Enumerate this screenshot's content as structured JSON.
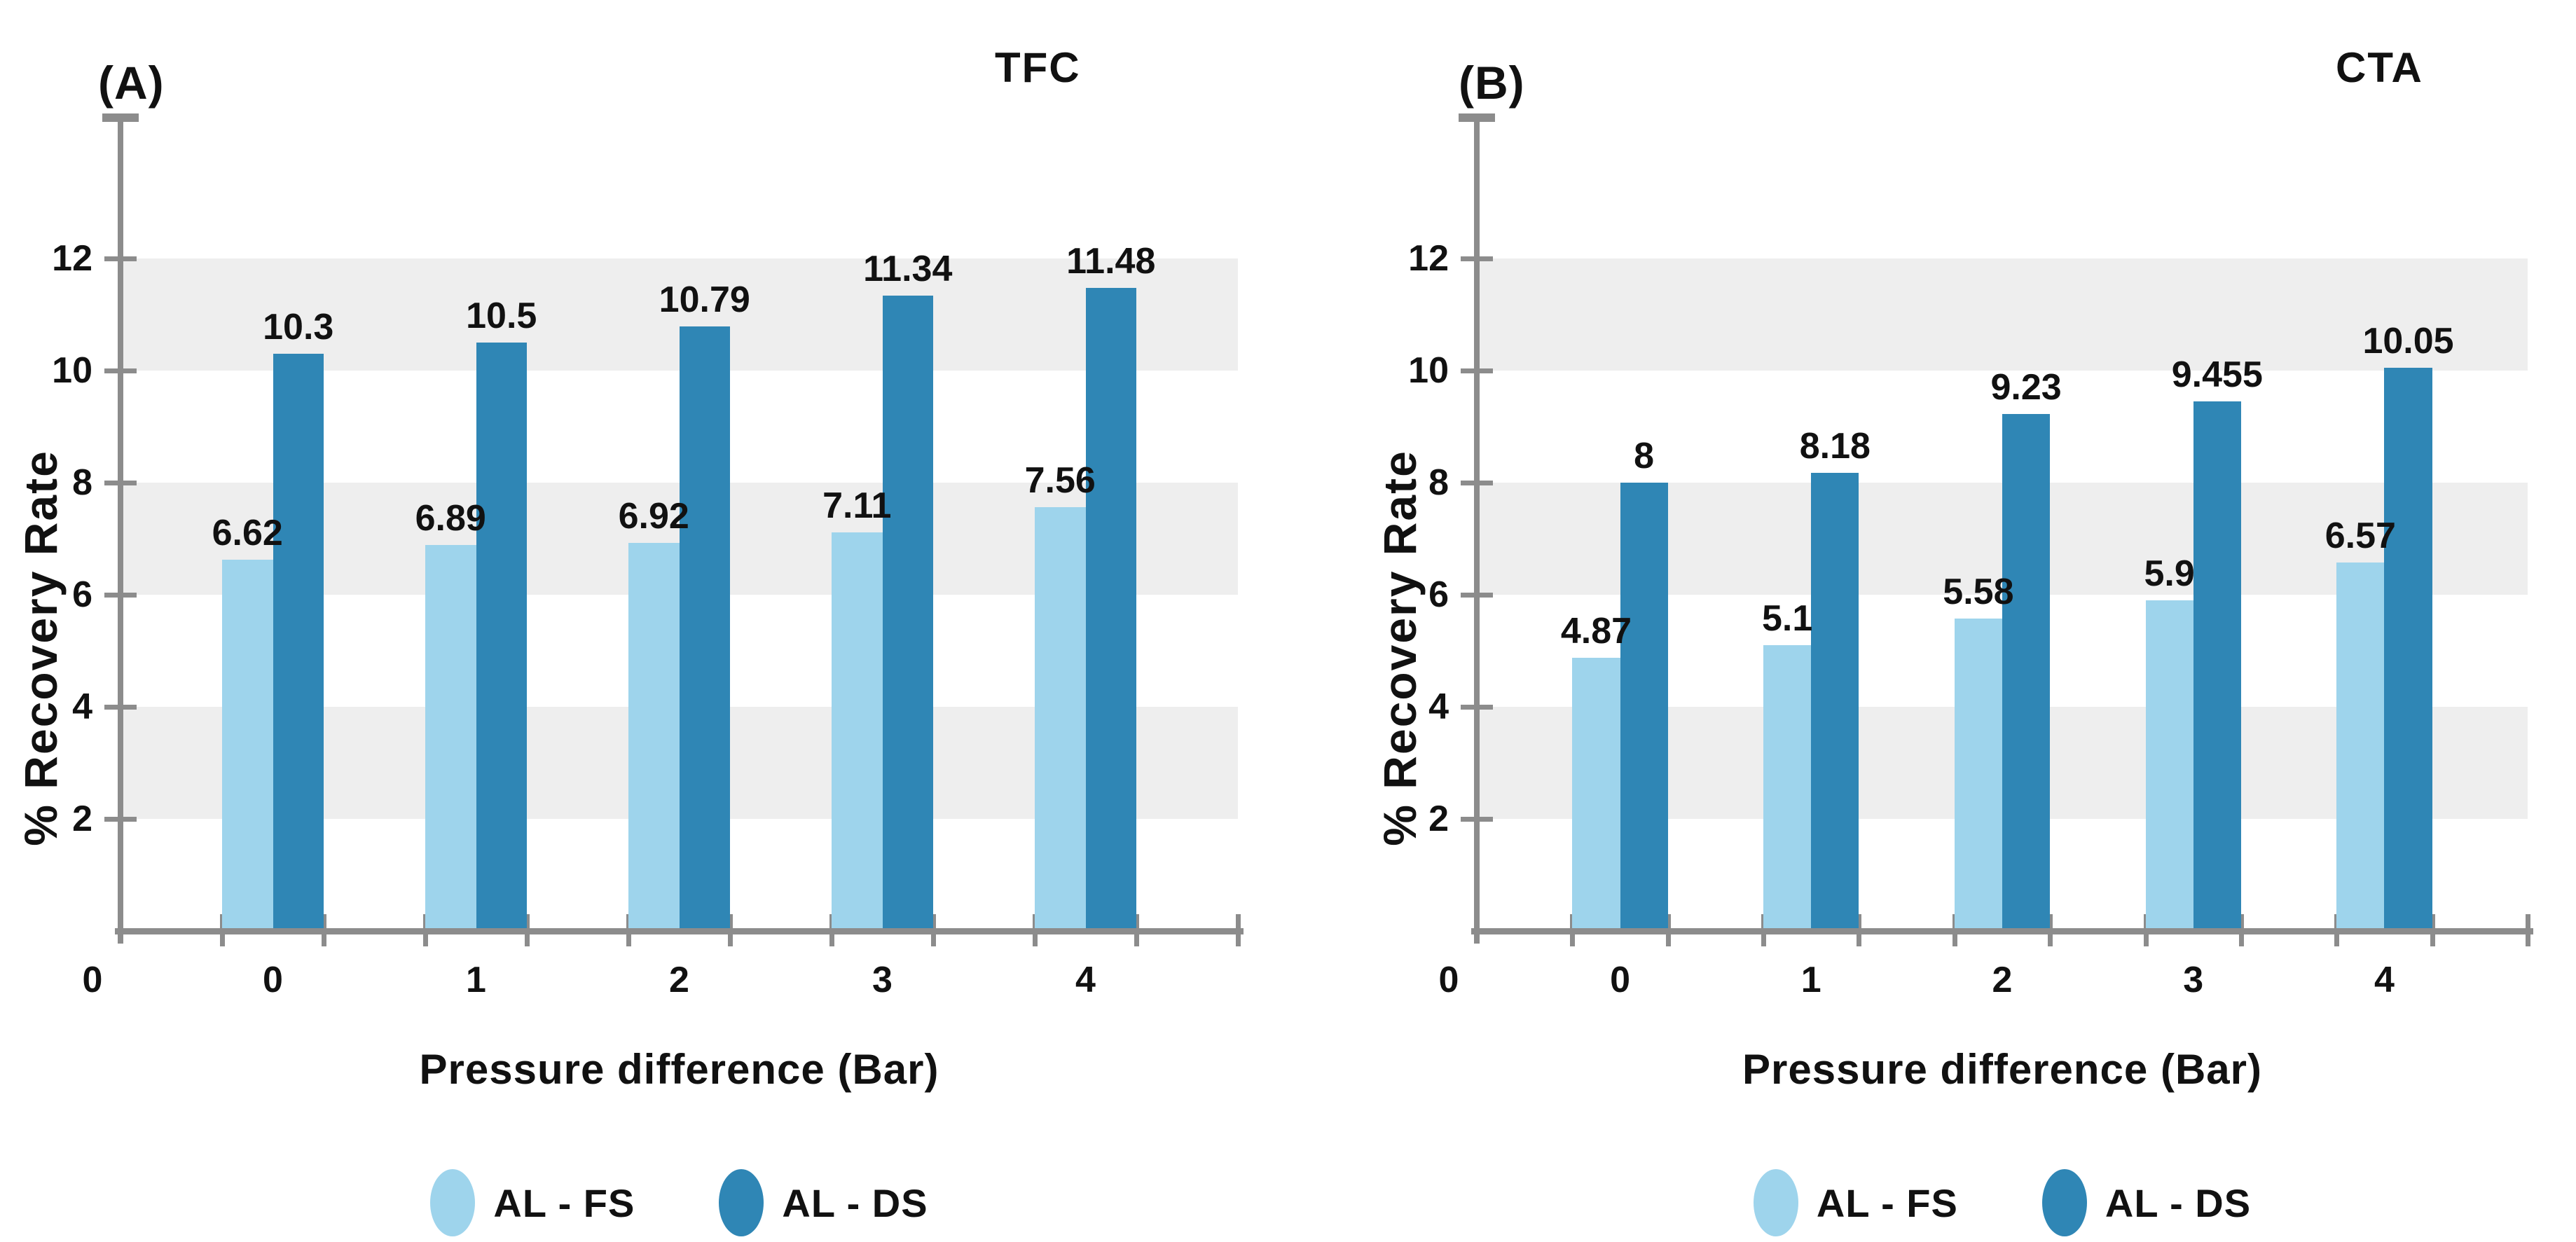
{
  "palette": {
    "background": "#FFFFFF",
    "band": "#EEEEEE",
    "axis": "#8C8C8C",
    "text": "#111111"
  },
  "chart_data": [
    {
      "type": "bar",
      "panel_label": "(A)",
      "title": "TFC",
      "ylabel": "% Recovery Rate",
      "xlabel": "Pressure difference (Bar)",
      "categories": [
        "0",
        "1",
        "2",
        "3",
        "4"
      ],
      "origin_label": "0",
      "yticks": [
        2,
        4,
        6,
        8,
        10,
        12
      ],
      "ylim": [
        0,
        14.5
      ],
      "grid": "alternating-horizontal-bands",
      "legend_position": "bottom",
      "series": [
        {
          "name": "AL - FS",
          "color": "#9ED4EC",
          "values": [
            6.62,
            6.89,
            6.92,
            7.11,
            7.56
          ],
          "labels": [
            "6.62",
            "6.89",
            "6.92",
            "7.11",
            "7.56"
          ]
        },
        {
          "name": "AL - DS",
          "color": "#2F86B5",
          "values": [
            10.3,
            10.5,
            10.79,
            11.34,
            11.48
          ],
          "labels": [
            "10.3",
            "10.5",
            "10.79",
            "11.34",
            "11.48"
          ]
        }
      ]
    },
    {
      "type": "bar",
      "panel_label": "(B)",
      "title": "CTA",
      "ylabel": "% Recovery Rate",
      "xlabel": "Pressure difference (Bar)",
      "categories": [
        "0",
        "1",
        "2",
        "3",
        "4"
      ],
      "origin_label": "0",
      "yticks": [
        2,
        4,
        6,
        8,
        10,
        12
      ],
      "ylim": [
        0,
        14.5
      ],
      "grid": "alternating-horizontal-bands",
      "legend_position": "bottom",
      "series": [
        {
          "name": "AL - FS",
          "color": "#9ED4EC",
          "values": [
            4.87,
            5.1,
            5.58,
            5.9,
            6.57
          ],
          "labels": [
            "4.87",
            "5.1",
            "5.58",
            "5.9",
            "6.57"
          ]
        },
        {
          "name": "AL - DS",
          "color": "#2F86B5",
          "values": [
            8,
            8.18,
            9.23,
            9.455,
            10.05
          ],
          "labels": [
            "8",
            "8.18",
            "9.23",
            "9.455",
            "10.05"
          ]
        }
      ]
    }
  ]
}
